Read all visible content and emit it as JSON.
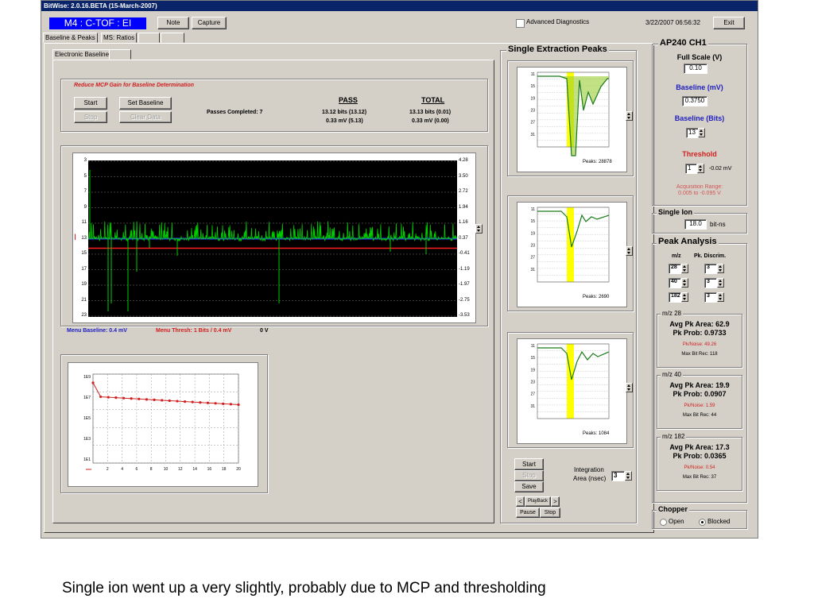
{
  "window": {
    "title": "BitWise: 2.0.16.BETA (15-March-2007)",
    "instrument": "M4 : C-TOF : EI",
    "note_label": "Note",
    "capture_label": "Capture",
    "advanced_diag_label": "Advanced Diagnostics",
    "datetime": "3/22/2007 06:56:32",
    "exit_label": "Exit"
  },
  "tabs": {
    "main": [
      "Baseline & Peaks",
      "MS: Ratios"
    ],
    "sub": [
      "Electronic Baseline"
    ]
  },
  "baseline": {
    "instruction": "Reduce MCP Gain for Baseline Determination",
    "start_label": "Start",
    "set_baseline_label": "Set Baseline",
    "stop_label": "Stop",
    "clear_data_label": "Clear Data",
    "passes": "Passes Completed: 7",
    "pass_header": "PASS",
    "total_header": "TOTAL",
    "pass_line1": "13.12 bits (13.12)",
    "pass_line2": "0.33 mV (5.13)",
    "total_line1": "13.13 bits (0.01)",
    "total_line2": "0.33 mV (0.00)"
  },
  "trace": {
    "left_ticks": [
      "3",
      "5",
      "7",
      "9",
      "11",
      "13",
      "15",
      "17",
      "19",
      "21",
      "23"
    ],
    "right_ticks": [
      "4.28",
      "3.50",
      "2.72",
      "1.94",
      "1.16",
      "0.37",
      "-0.41",
      "-1.19",
      "-1.97",
      "-2.75",
      "-3.53"
    ],
    "menu_baseline": "Menu Baseline: 0.4 mV",
    "menu_thresh": "Menu Thresh: 1 Bits / 0.4 mV",
    "zero_v": "0 V",
    "marker": "I"
  },
  "convergence_chart": {
    "y_ticks": [
      "1E9",
      "1E7",
      "1E5",
      "1E3",
      "1E1"
    ],
    "x_ticks": [
      "2",
      "4",
      "6",
      "8",
      "10",
      "12",
      "14",
      "16",
      "18",
      "20"
    ]
  },
  "peaks": {
    "title": "Single Extraction Peaks",
    "y_ticks": [
      "11",
      "15",
      "19",
      "23",
      "27",
      "31"
    ],
    "panels": [
      {
        "count": "Peaks: 28878"
      },
      {
        "count": "Peaks: 2690"
      },
      {
        "count": "Peaks: 1084"
      }
    ],
    "start_label": "Start",
    "stop_label": "Stop",
    "save_label": "Save",
    "integration_label_1": "Integration",
    "integration_label_2": "Area (nsec)",
    "integration_value": "3",
    "prev_label": "<",
    "playback_label": "PlayBack",
    "next_label": ">",
    "pause_label": "Pause",
    "stop2_label": "Stop"
  },
  "ap240": {
    "title": "AP240 CH1",
    "full_scale_label": "Full Scale (V)",
    "full_scale_value": "0.10",
    "baseline_mv_label": "Baseline (mV)",
    "baseline_mv_value": "0.3750",
    "baseline_bits_label": "Baseline (Bits)",
    "baseline_bits_value": "13",
    "threshold_label": "Threshold",
    "threshold_value": "1",
    "threshold_mv": "-0.02 mV",
    "acq_range_1": "Acquisition Range:",
    "acq_range_2": "0.005 to -0.095 V"
  },
  "single_ion": {
    "title": "Single Ion",
    "value": "18.0",
    "unit": "bit-ns"
  },
  "peak_analysis": {
    "title": "Peak Analysis",
    "mz_header": "m/z",
    "discrim_header": "Pk. Discrim.",
    "rows": [
      {
        "mz": "28",
        "discrim": "3"
      },
      {
        "mz": "40",
        "discrim": "3"
      },
      {
        "mz": "182",
        "discrim": "3"
      }
    ],
    "groups": [
      {
        "title": "m/z 28",
        "area": "Avg Pk Area: 62.9",
        "prob": "Pk Prob: 0.9733",
        "noise": "Pk/Noise: 49.26",
        "maxbit": "Max Bit Rec: 118"
      },
      {
        "title": "m/z 40",
        "area": "Avg Pk Area: 19.9",
        "prob": "Pk Prob: 0.0907",
        "noise": "Pk/Noise: 1.59",
        "maxbit": "Max Bit Rec: 44"
      },
      {
        "title": "m/z 182",
        "area": "Avg Pk Area: 17.3",
        "prob": "Pk Prob: 0.0365",
        "noise": "Pk/Noise: 0.54",
        "maxbit": "Max Bit Rec: 37"
      }
    ]
  },
  "chopper": {
    "title": "Chopper",
    "open_label": "Open",
    "blocked_label": "Blocked",
    "selected": "Blocked"
  },
  "caption": "Single ion went up a very slightly, probably due to MCP and thresholding",
  "colors": {
    "title_bar": "#0a246a",
    "instrument_bg": "#0000ff",
    "signal": "#00cc00",
    "baseline_line": "#3030ff",
    "threshold_line": "#ff2020",
    "peak_window": "#ffff00",
    "plot_bg": "#000000"
  }
}
